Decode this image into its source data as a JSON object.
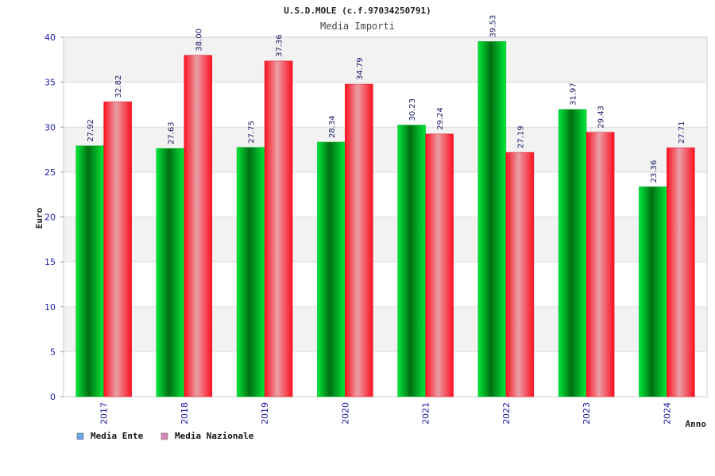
{
  "chart_data": {
    "type": "bar",
    "title": "U.S.D.MOLE (c.f.97034250791)",
    "subtitle": "Media Importi",
    "xlabel": "Anno",
    "ylabel": "Euro",
    "categories": [
      "2017",
      "2018",
      "2019",
      "2020",
      "2021",
      "2022",
      "2023",
      "2024"
    ],
    "series": [
      {
        "name": "Media Ente",
        "values": [
          27.92,
          27.63,
          27.75,
          28.34,
          30.23,
          39.53,
          31.97,
          23.36
        ],
        "color": "#00cc22",
        "legend_color": "#6fa8e8"
      },
      {
        "name": "Media Nazionale",
        "values": [
          32.82,
          38.0,
          37.36,
          34.79,
          29.24,
          27.19,
          29.43,
          27.71
        ],
        "color": "#ee1122",
        "legend_color": "#d98ab8"
      }
    ],
    "data_labels": [
      [
        "27.92",
        "27.63",
        "27.75",
        "28.34",
        "30.23",
        "39.53",
        "31.97",
        "23.36"
      ],
      [
        "32.82",
        "38.00",
        "37.36",
        "34.79",
        "29.24",
        "27.19",
        "29.43",
        "27.71"
      ]
    ],
    "ylim": [
      0,
      40
    ],
    "yticks": [
      0,
      5,
      10,
      15,
      20,
      25,
      30,
      35,
      40
    ],
    "grid": true,
    "legend": "bottom-left"
  }
}
